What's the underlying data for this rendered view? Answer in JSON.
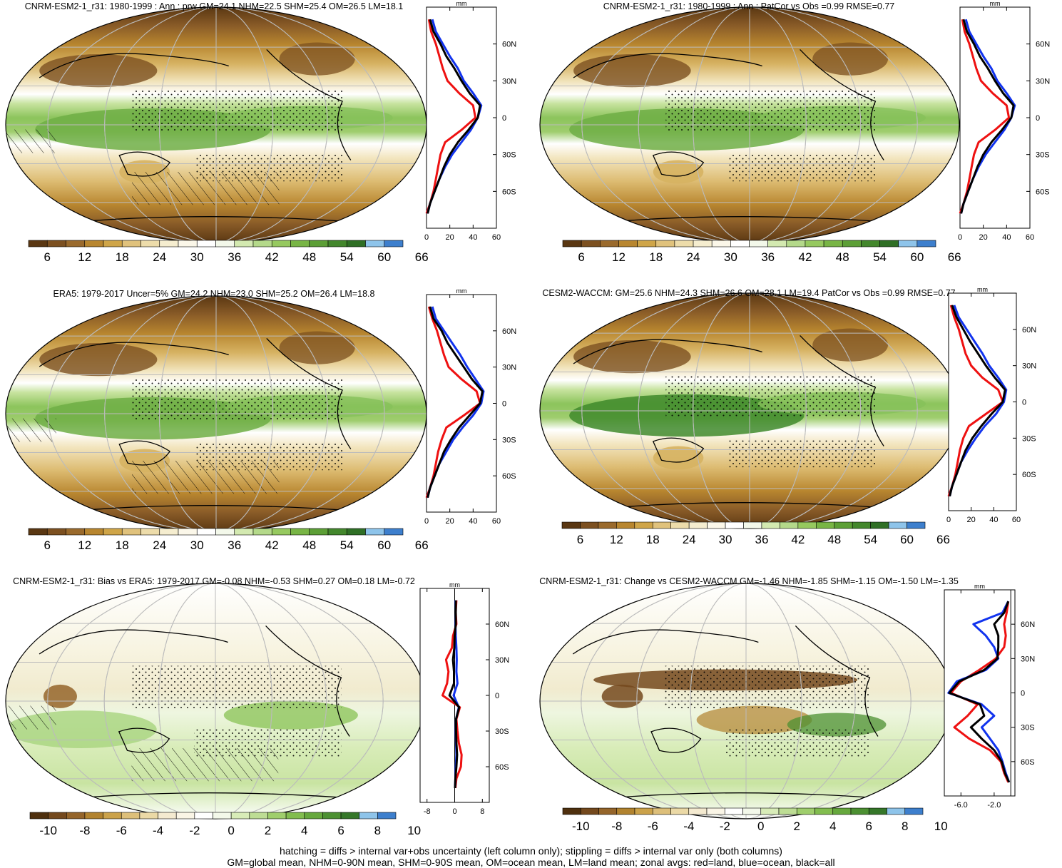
{
  "footer": {
    "line1": "hatching = diffs > internal var+obs uncertainty (left column only); stippling = diffs > internal var only (both columns)",
    "line2": "GM=global mean, NHM=0-90N mean, SHM=0-90S mean, OM=ocean mean, LM=land mean; zonal avgs: red=land, blue=ocean, black=all"
  },
  "colors": {
    "land_line": "#ee1111",
    "ocean_line": "#1133ee",
    "all_line": "#000000",
    "abs_scale": [
      "#5a3712",
      "#7c5020",
      "#9a6a2c",
      "#b8862f",
      "#cfa548",
      "#e0c27c",
      "#eddcaa",
      "#f5edcf",
      "#fbf7e9",
      "#ffffff",
      "#f3f8ea",
      "#d3e9b0",
      "#b4d98a",
      "#96c95f",
      "#78b545",
      "#5c9f36",
      "#43872c",
      "#2f6f25",
      "#8ec4ea",
      "#3d7fcd"
    ],
    "diff_scale": [
      "#4f300e",
      "#74491d",
      "#95652a",
      "#b2832f",
      "#cba24a",
      "#ddbf7a",
      "#ebd9a6",
      "#f4ead0",
      "#faf5e6",
      "#ffffff",
      "#f3f8ea",
      "#d8ecb8",
      "#bddd94",
      "#9fce6c",
      "#82bd4f",
      "#66a83d",
      "#4c9032",
      "#357729",
      "#8ec4ea",
      "#3d7fcd"
    ]
  },
  "panels": [
    {
      "title": "CNRM-ESM2-1_r31: 1980-1999 : Ann : prw GM=24.1 NHM=22.5 SHM=25.4 OM=26.5 LM=18.1",
      "type": "abs",
      "hatching": true,
      "colorbar_labels": [
        "6",
        "12",
        "18",
        "24",
        "30",
        "36",
        "42",
        "48",
        "54",
        "60",
        "66"
      ],
      "zonal": {
        "unit": "mm",
        "xticks": [
          "0",
          "20",
          "40",
          "60"
        ],
        "lat_labels": [
          "60N",
          "30N",
          "0",
          "30S",
          "60S"
        ]
      }
    },
    {
      "title": "CNRM-ESM2-1_r31: 1980-1999 : Ann : PatCor vs Obs =0.99 RMSE=0.77",
      "type": "abs",
      "hatching": false,
      "colorbar_labels": [
        "6",
        "12",
        "18",
        "24",
        "30",
        "36",
        "42",
        "48",
        "54",
        "60",
        "66"
      ],
      "zonal": {
        "unit": "mm",
        "xticks": [
          "0",
          "20",
          "40",
          "60"
        ],
        "lat_labels": [
          "60N",
          "30N",
          "0",
          "30S",
          "60S"
        ]
      }
    },
    {
      "title": "ERA5: 1979-2017 Uncer=5% GM=24.2 NHM=23.0 SHM=25.2 OM=26.4 LM=18.8",
      "type": "abs",
      "hatching": true,
      "colorbar_labels": [
        "6",
        "12",
        "18",
        "24",
        "30",
        "36",
        "42",
        "48",
        "54",
        "60",
        "66"
      ],
      "zonal": {
        "unit": "mm",
        "xticks": [
          "0",
          "20",
          "40",
          "60"
        ],
        "lat_labels": [
          "60N",
          "30N",
          "0",
          "30S",
          "60S"
        ]
      }
    },
    {
      "title": "CESM2-WACCM: GM=25.6 NHM=24.3 SHM=26.6 OM=28.1 LM=19.4 PatCor vs Obs =0.99 RMSE=0.77",
      "type": "abs",
      "hatching": false,
      "colorbar_labels": [
        "6",
        "12",
        "18",
        "24",
        "30",
        "36",
        "42",
        "48",
        "54",
        "60",
        "66"
      ],
      "zonal": {
        "unit": "mm",
        "xticks": [
          "0",
          "20",
          "40",
          "60"
        ],
        "lat_labels": [
          "60N",
          "30N",
          "0",
          "30S",
          "60S"
        ]
      }
    },
    {
      "title": "CNRM-ESM2-1_r31: Bias vs ERA5: 1979-2017 GM=-0.08 NHM=-0.53 SHM=0.27 OM=0.18 LM=-0.72",
      "type": "diff",
      "hatching": true,
      "colorbar_labels": [
        "-10",
        "-8",
        "-6",
        "-4",
        "-2",
        "0",
        "2",
        "4",
        "6",
        "8",
        "10"
      ],
      "zonal": {
        "unit": "mm",
        "xticks": [
          "-8",
          "0",
          "8"
        ],
        "lat_labels": [
          "60N",
          "30N",
          "0",
          "30S",
          "60S"
        ]
      }
    },
    {
      "title": "CNRM-ESM2-1_r31: Change vs CESM2-WACCM GM=-1.46 NHM=-1.85 SHM=-1.15 OM=-1.50 LM=-1.35",
      "type": "diff",
      "hatching": false,
      "colorbar_labels": [
        "-10",
        "-8",
        "-6",
        "-4",
        "-2",
        "0",
        "2",
        "4",
        "6",
        "8",
        "10"
      ],
      "zonal": {
        "unit": "mm",
        "xticks": [
          "-6.0",
          "-2.0"
        ],
        "lat_labels": [
          "60N",
          "30N",
          "0",
          "30S",
          "60S"
        ]
      }
    }
  ],
  "chart_data": [
    {
      "type": "heatmap",
      "title": "CNRM-ESM2-1_r31: 1980-1999 : Ann : prw GM=24.1 NHM=22.5 SHM=25.4 OM=26.5 LM=18.1",
      "projection": "robinson",
      "colorbar_ticks": [
        6,
        12,
        18,
        24,
        30,
        36,
        42,
        48,
        54,
        60,
        66
      ]
    },
    {
      "type": "line",
      "xlabel": "",
      "ylabel": "",
      "unit": "mm",
      "xlim": [
        0,
        60
      ],
      "lat": [
        80,
        70,
        60,
        50,
        40,
        30,
        20,
        10,
        0,
        -10,
        -20,
        -30,
        -40,
        -50,
        -60,
        -70,
        -78
      ],
      "series": [
        {
          "values": [
            2,
            4,
            8,
            11,
            14,
            18,
            28,
            40,
            42,
            30,
            16,
            12,
            10,
            8,
            6,
            3,
            0
          ]
        },
        {
          "values": [
            5,
            8,
            14,
            20,
            27,
            32,
            40,
            47,
            44,
            38,
            30,
            22,
            16,
            11,
            7,
            3,
            1
          ]
        },
        {
          "values": [
            3,
            6,
            12,
            17,
            24,
            30,
            37,
            46,
            44,
            36,
            27,
            20,
            15,
            11,
            7,
            3,
            1
          ]
        }
      ]
    },
    {
      "type": "heatmap",
      "title": "CNRM-ESM2-1_r31: 1980-1999 : Ann : PatCor vs Obs =0.99 RMSE=0.77",
      "projection": "robinson",
      "colorbar_ticks": [
        6,
        12,
        18,
        24,
        30,
        36,
        42,
        48,
        54,
        60,
        66
      ]
    },
    {
      "type": "line",
      "unit": "mm",
      "xlim": [
        0,
        60
      ],
      "lat": [
        80,
        70,
        60,
        50,
        40,
        30,
        20,
        10,
        0,
        -10,
        -20,
        -30,
        -40,
        -50,
        -60,
        -70,
        -78
      ],
      "series": [
        {
          "values": [
            2,
            4,
            8,
            11,
            14,
            18,
            28,
            40,
            42,
            30,
            16,
            12,
            10,
            8,
            6,
            3,
            0
          ]
        },
        {
          "values": [
            5,
            8,
            14,
            20,
            27,
            32,
            40,
            47,
            44,
            38,
            30,
            22,
            16,
            11,
            7,
            3,
            1
          ]
        },
        {
          "values": [
            3,
            6,
            12,
            17,
            24,
            30,
            37,
            46,
            44,
            36,
            27,
            20,
            15,
            11,
            7,
            3,
            1
          ]
        }
      ]
    },
    {
      "type": "heatmap",
      "title": "ERA5: 1979-2017 Uncer=5% GM=24.2 NHM=23.0 SHM=25.2 OM=26.4 LM=18.8",
      "projection": "robinson",
      "colorbar_ticks": [
        6,
        12,
        18,
        24,
        30,
        36,
        42,
        48,
        54,
        60,
        66
      ]
    },
    {
      "type": "line",
      "unit": "mm",
      "xlim": [
        0,
        60
      ],
      "lat": [
        80,
        70,
        60,
        50,
        40,
        30,
        20,
        10,
        0,
        -10,
        -20,
        -30,
        -40,
        -50,
        -60,
        -70,
        -78
      ],
      "series": [
        {
          "values": [
            2,
            5,
            9,
            12,
            15,
            19,
            30,
            43,
            46,
            32,
            17,
            13,
            10,
            8,
            6,
            3,
            0
          ]
        },
        {
          "values": [
            5,
            8,
            15,
            22,
            29,
            35,
            42,
            49,
            47,
            40,
            31,
            23,
            17,
            11,
            7,
            3,
            1
          ]
        },
        {
          "values": [
            3,
            6,
            13,
            18,
            25,
            32,
            39,
            48,
            46,
            37,
            28,
            21,
            15,
            11,
            7,
            3,
            1
          ]
        }
      ]
    },
    {
      "type": "heatmap",
      "title": "CESM2-WACCM: GM=25.6 NHM=24.3 SHM=26.6 OM=28.1 LM=19.4 PatCor vs Obs =0.99 RMSE=0.77",
      "projection": "robinson",
      "colorbar_ticks": [
        6,
        12,
        18,
        24,
        30,
        36,
        42,
        48,
        54,
        60,
        66
      ]
    },
    {
      "type": "line",
      "unit": "mm",
      "xlim": [
        0,
        60
      ],
      "lat": [
        80,
        70,
        60,
        50,
        40,
        30,
        20,
        10,
        0,
        -10,
        -20,
        -30,
        -40,
        -50,
        -60,
        -70,
        -78
      ],
      "series": [
        {
          "values": [
            2,
            5,
            9,
            12,
            15,
            20,
            30,
            44,
            48,
            33,
            18,
            13,
            10,
            8,
            6,
            3,
            0
          ]
        },
        {
          "values": [
            5,
            9,
            16,
            23,
            30,
            36,
            44,
            51,
            49,
            42,
            32,
            24,
            17,
            11,
            7,
            3,
            1
          ]
        },
        {
          "values": [
            3,
            7,
            13,
            19,
            26,
            33,
            41,
            50,
            48,
            38,
            29,
            21,
            15,
            11,
            7,
            3,
            1
          ]
        }
      ]
    },
    {
      "type": "heatmap",
      "title": "CNRM-ESM2-1_r31: Bias vs ERA5: 1979-2017 GM=-0.08 NHM=-0.53 SHM=0.27 OM=0.18 LM=-0.72",
      "projection": "robinson",
      "colorbar_ticks": [
        -10,
        -8,
        -6,
        -4,
        -2,
        0,
        2,
        4,
        6,
        8,
        10
      ]
    },
    {
      "type": "line",
      "unit": "mm",
      "xlim": [
        -10,
        10
      ],
      "lat": [
        80,
        70,
        60,
        50,
        40,
        30,
        20,
        10,
        0,
        -10,
        -20,
        -30,
        -40,
        -50,
        -60,
        -70,
        -78
      ],
      "series": [
        {
          "values": [
            0.5,
            0.3,
            0.5,
            -0.5,
            -0.8,
            -2.5,
            -1.8,
            -2.2,
            -3.5,
            1.5,
            0.5,
            0.8,
            1.2,
            2.0,
            1.8,
            0.5,
            0.2
          ]
        },
        {
          "values": [
            0.2,
            0.3,
            0.2,
            0.3,
            0.5,
            0.6,
            0.5,
            0.8,
            -0.3,
            1.2,
            0.4,
            0.3,
            0.4,
            0.5,
            0.3,
            0.2,
            0.1
          ]
        },
        {
          "values": [
            0.3,
            0.3,
            0.3,
            0.0,
            -0.1,
            -0.5,
            -0.2,
            -0.2,
            -1.5,
            1.3,
            0.4,
            0.4,
            0.5,
            0.7,
            0.5,
            0.2,
            0.1
          ]
        }
      ]
    },
    {
      "type": "heatmap",
      "title": "CNRM-ESM2-1_r31: Change vs CESM2-WACCM GM=-1.46 NHM=-1.85 SHM=-1.15 OM=-1.50 LM=-1.35",
      "projection": "robinson",
      "colorbar_ticks": [
        -10,
        -8,
        -6,
        -4,
        -2,
        0,
        2,
        4,
        6,
        8,
        10
      ]
    },
    {
      "type": "line",
      "unit": "mm",
      "xlim": [
        -8,
        0.5
      ],
      "lat": [
        80,
        70,
        60,
        50,
        40,
        30,
        20,
        10,
        0,
        -10,
        -20,
        -30,
        -40,
        -50,
        -60,
        -70,
        -78
      ],
      "series": [
        {
          "values": [
            -0.3,
            -0.5,
            -0.8,
            -0.6,
            -0.8,
            -1.8,
            -3.8,
            -6.0,
            -7.2,
            -4.0,
            -5.2,
            -6.8,
            -5.0,
            -2.5,
            -1.2,
            -0.8,
            -0.3
          ]
        },
        {
          "values": [
            -0.3,
            -1.0,
            -4.5,
            -3.0,
            -2.0,
            -1.5,
            -3.0,
            -6.5,
            -7.5,
            -3.5,
            -2.0,
            -3.5,
            -2.5,
            -1.5,
            -1.0,
            -0.6,
            -0.2
          ]
        },
        {
          "values": [
            -0.3,
            -0.8,
            -2.0,
            -1.5,
            -1.5,
            -1.6,
            -3.2,
            -6.2,
            -7.4,
            -3.7,
            -3.2,
            -4.8,
            -3.5,
            -2.0,
            -1.1,
            -0.7,
            -0.2
          ]
        }
      ]
    }
  ]
}
